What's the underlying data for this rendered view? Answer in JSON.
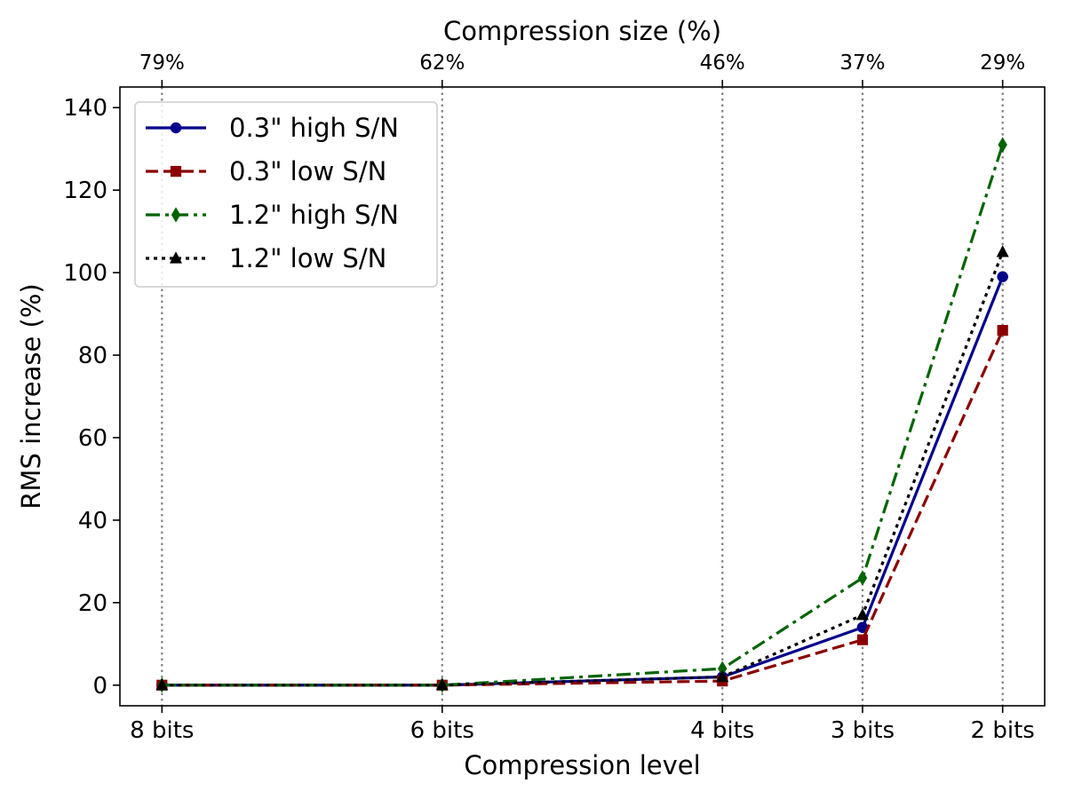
{
  "chart_data": {
    "type": "line",
    "title": "",
    "xlabel": "Compression level",
    "ylabel": "RMS increase (%)",
    "top_xlabel": "Compression size (%)",
    "categories": [
      "8 bits",
      "6 bits",
      "4 bits",
      "3 bits",
      "2 bits"
    ],
    "bits": [
      8,
      6,
      4,
      3,
      2
    ],
    "top_categories": [
      "79%",
      "62%",
      "46%",
      "37%",
      "29%"
    ],
    "xlim": [
      8.3,
      1.7
    ],
    "ylim": [
      -5,
      145
    ],
    "yticks": [
      0,
      20,
      40,
      60,
      80,
      100,
      120,
      140
    ],
    "vertical_gridlines": "dotted grey at each compression level",
    "legend_position": "upper-left",
    "series": [
      {
        "name": "0.3\" high S/N",
        "values": [
          0,
          0,
          2,
          14,
          99
        ],
        "color": "#00008b",
        "linestyle": "solid",
        "marker": "circle"
      },
      {
        "name": "0.3\" low S/N",
        "values": [
          0,
          0,
          1,
          11,
          86
        ],
        "color": "#8b0000",
        "linestyle": "dashed",
        "marker": "square"
      },
      {
        "name": "1.2\" high S/N",
        "values": [
          0,
          0,
          4,
          26,
          131
        ],
        "color": "#006400",
        "linestyle": "dashdot",
        "marker": "thin-diamond"
      },
      {
        "name": "1.2\" low S/N",
        "values": [
          0,
          0,
          2,
          17,
          105
        ],
        "color": "#000000",
        "linestyle": "dotted",
        "marker": "triangle"
      }
    ]
  }
}
